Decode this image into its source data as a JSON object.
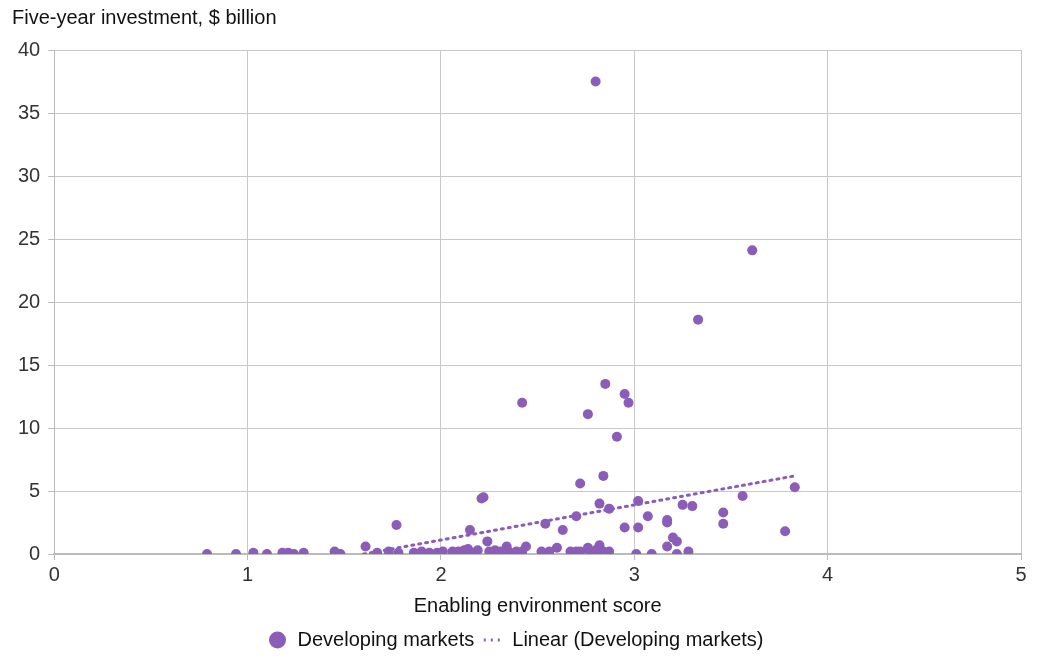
{
  "chart_data": {
    "type": "scatter",
    "ylabel": "Five-year investment, $ billion",
    "xlabel": "Enabling environment score",
    "xlim": [
      0,
      5
    ],
    "xticks": [
      0,
      1,
      2,
      3,
      4,
      5
    ],
    "ylim": [
      0,
      40
    ],
    "yticks": [
      0,
      5,
      10,
      15,
      20,
      25,
      30,
      35,
      40
    ],
    "grid": true,
    "legend": "bottom",
    "marker": "circle",
    "series": [
      {
        "name": "Developing markets",
        "color": "#8b5db8",
        "x": [
          0.79,
          0.94,
          1.03,
          1.1,
          1.18,
          1.21,
          1.24,
          1.29,
          1.45,
          1.48,
          1.61,
          1.67,
          1.73,
          1.77,
          1.78,
          1.86,
          1.9,
          1.94,
          1.98,
          2.01,
          2.06,
          2.09,
          2.12,
          2.14,
          2.15,
          2.17,
          2.19,
          2.21,
          2.22,
          2.24,
          2.25,
          2.28,
          2.31,
          2.34,
          2.35,
          2.39,
          2.42,
          2.44,
          2.42,
          2.54,
          2.52,
          2.56,
          2.6,
          2.63,
          2.67,
          2.7,
          2.72,
          2.76,
          2.77,
          2.8,
          2.82,
          2.84,
          2.87,
          2.7,
          2.72,
          2.76,
          2.8,
          2.82,
          2.84,
          2.85,
          2.87,
          2.91,
          2.95,
          2.97,
          2.95,
          3.01,
          3.02,
          3.02,
          3.07,
          3.09,
          3.17,
          3.17,
          3.17,
          3.2,
          3.22,
          3.22,
          3.25,
          3.3,
          3.28,
          3.33,
          3.46,
          3.46,
          3.56,
          3.61,
          3.78,
          3.83
        ],
        "values": [
          0,
          0,
          0.1,
          0,
          0.1,
          0.1,
          0,
          0.1,
          0.2,
          0,
          0.6,
          0.1,
          0.2,
          2.3,
          0.1,
          0.1,
          0.2,
          0.1,
          0.1,
          0.2,
          0.2,
          0.2,
          0.3,
          0.4,
          1.9,
          0.1,
          0.3,
          4.4,
          4.5,
          1.0,
          0.2,
          0.3,
          0.2,
          0.6,
          0.2,
          0.2,
          0.2,
          0.6,
          12.0,
          2.4,
          0.2,
          0.2,
          0.5,
          1.9,
          0.2,
          0.2,
          0.2,
          0.5,
          0.2,
          0.3,
          0.7,
          0.2,
          0.2,
          3.0,
          5.6,
          11.1,
          37.5,
          4.0,
          6.2,
          13.5,
          3.6,
          9.3,
          12.7,
          12.0,
          2.1,
          0,
          2.1,
          4.2,
          3.0,
          0,
          2.7,
          2.5,
          0.6,
          1.3,
          1.0,
          0,
          3.9,
          3.8,
          0.2,
          18.6,
          3.3,
          2.4,
          4.6,
          24.1,
          1.8,
          5.3
        ]
      },
      {
        "name": "Linear (Developing markets)",
        "color": "#8b5db8",
        "type": "line",
        "marker": "none",
        "line_style": "dotted",
        "x": [
          1.6,
          3.83
        ],
        "values": [
          0,
          6.2
        ]
      }
    ]
  }
}
